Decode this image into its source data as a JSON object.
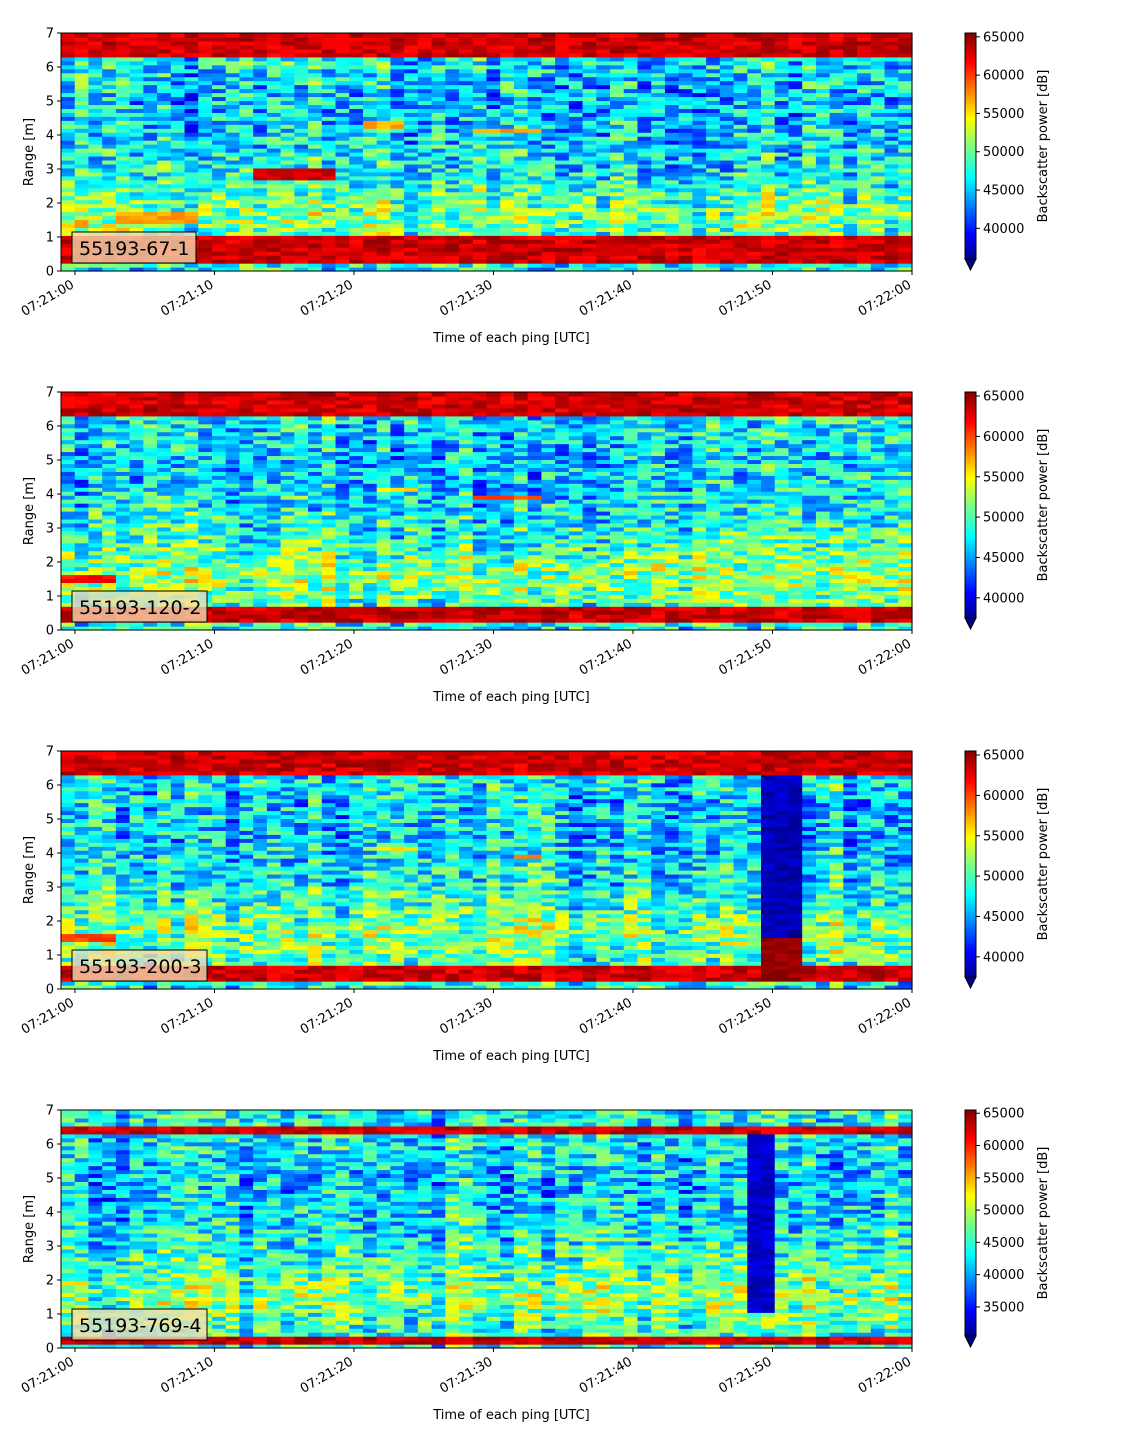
{
  "chart_data": [
    {
      "type": "heatmap",
      "annotation": "55193-67-1",
      "xlabel": "Time of each ping [UTC]",
      "ylabel": "Range [m]",
      "x_ticks": [
        "07:21:00",
        "07:21:10",
        "07:21:20",
        "07:21:30",
        "07:21:40",
        "07:21:50",
        "07:22:00"
      ],
      "x_range": [
        "07:20:59",
        "07:22:00"
      ],
      "y_ticks": [
        0,
        1,
        2,
        3,
        4,
        5,
        6,
        7
      ],
      "ylim": [
        0,
        7
      ],
      "colorbar": {
        "label": "Backscatter power [dB]",
        "ticks": [
          40000,
          45000,
          50000,
          55000,
          60000,
          65000
        ],
        "range": [
          36000,
          65500
        ],
        "extend": "min",
        "colormap": "jet"
      },
      "features": [
        {
          "kind": "band",
          "y_from": 0.2,
          "y_to": 1.1,
          "value": 65000
        },
        {
          "kind": "band",
          "y_from": 6.3,
          "y_to": 7.0,
          "value": 65000
        },
        {
          "kind": "patch",
          "t_from": "07:21:13",
          "t_to": "07:21:19",
          "y_from": 2.7,
          "y_to": 3.0,
          "value": 63000
        },
        {
          "kind": "patch",
          "t_from": "07:21:21",
          "t_to": "07:21:24",
          "y_from": 4.2,
          "y_to": 4.4,
          "value": 57000
        },
        {
          "kind": "patch",
          "t_from": "07:21:29",
          "t_to": "07:21:33",
          "y_from": 4.05,
          "y_to": 4.25,
          "value": 57000
        },
        {
          "kind": "patch",
          "t_from": "07:21:03",
          "t_to": "07:21:09",
          "y_from": 1.4,
          "y_to": 1.7,
          "value": 57000
        }
      ]
    },
    {
      "type": "heatmap",
      "annotation": "55193-120-2",
      "xlabel": "Time of each ping [UTC]",
      "ylabel": "Range [m]",
      "x_ticks": [
        "07:21:00",
        "07:21:10",
        "07:21:20",
        "07:21:30",
        "07:21:40",
        "07:21:50",
        "07:22:00"
      ],
      "x_range": [
        "07:20:59",
        "07:22:00"
      ],
      "y_ticks": [
        0,
        1,
        2,
        3,
        4,
        5,
        6,
        7
      ],
      "ylim": [
        0,
        7
      ],
      "colorbar": {
        "label": "Backscatter power [dB]",
        "ticks": [
          40000,
          45000,
          50000,
          55000,
          60000,
          65000
        ],
        "range": [
          37500,
          65500
        ],
        "extend": "min",
        "colormap": "jet"
      },
      "features": [
        {
          "kind": "band",
          "y_from": 0.2,
          "y_to": 0.7,
          "value": 65000
        },
        {
          "kind": "band",
          "y_from": 6.3,
          "y_to": 7.0,
          "value": 65000
        },
        {
          "kind": "patch",
          "t_from": "07:21:22",
          "t_to": "07:21:25",
          "y_from": 4.05,
          "y_to": 4.2,
          "value": 56000
        },
        {
          "kind": "patch",
          "t_from": "07:21:29",
          "t_to": "07:21:33",
          "y_from": 3.8,
          "y_to": 3.95,
          "value": 60000
        },
        {
          "kind": "patch",
          "t_from": "07:21:15",
          "t_to": "07:21:18",
          "y_from": 2.5,
          "y_to": 2.65,
          "value": 54000
        },
        {
          "kind": "patch",
          "t_from": "07:20:59",
          "t_to": "07:21:03",
          "y_from": 1.4,
          "y_to": 1.6,
          "value": 62000
        }
      ]
    },
    {
      "type": "heatmap",
      "annotation": "55193-200-3",
      "xlabel": "Time of each ping [UTC]",
      "ylabel": "Range [m]",
      "x_ticks": [
        "07:21:00",
        "07:21:10",
        "07:21:20",
        "07:21:30",
        "07:21:40",
        "07:21:50",
        "07:22:00"
      ],
      "x_range": [
        "07:20:59",
        "07:22:00"
      ],
      "y_ticks": [
        0,
        1,
        2,
        3,
        4,
        5,
        6,
        7
      ],
      "ylim": [
        0,
        7
      ],
      "colorbar": {
        "label": "Backscatter power [dB]",
        "ticks": [
          40000,
          45000,
          50000,
          55000,
          60000,
          65000
        ],
        "range": [
          37500,
          65500
        ],
        "extend": "min",
        "colormap": "jet"
      },
      "features": [
        {
          "kind": "band",
          "y_from": 0.2,
          "y_to": 0.65,
          "value": 65000
        },
        {
          "kind": "band",
          "y_from": 6.3,
          "y_to": 7.0,
          "value": 65000
        },
        {
          "kind": "patch",
          "t_from": "07:21:22",
          "t_to": "07:21:25",
          "y_from": 4.05,
          "y_to": 4.2,
          "value": 56000
        },
        {
          "kind": "patch",
          "t_from": "07:21:31",
          "t_to": "07:21:33",
          "y_from": 3.85,
          "y_to": 4.0,
          "value": 58000
        },
        {
          "kind": "patch",
          "t_from": "07:20:59",
          "t_to": "07:21:03",
          "y_from": 1.4,
          "y_to": 1.6,
          "value": 60000
        },
        {
          "kind": "column",
          "t_from": "07:21:49",
          "t_to": "07:21:52",
          "y_from": 1.5,
          "y_to": 6.3,
          "value": 39000
        },
        {
          "kind": "patch",
          "t_from": "07:21:49",
          "t_to": "07:21:52",
          "y_from": 0.2,
          "y_to": 1.5,
          "value": 65000
        }
      ]
    },
    {
      "type": "heatmap",
      "annotation": "55193-769-4",
      "xlabel": "Time of each ping [UTC]",
      "ylabel": "Range [m]",
      "x_ticks": [
        "07:21:00",
        "07:21:10",
        "07:21:20",
        "07:21:30",
        "07:21:40",
        "07:21:50",
        "07:22:00"
      ],
      "x_range": [
        "07:20:59",
        "07:22:00"
      ],
      "y_ticks": [
        0,
        1,
        2,
        3,
        4,
        5,
        6,
        7
      ],
      "ylim": [
        0,
        7
      ],
      "colorbar": {
        "label": "Backscatter power [dB]",
        "ticks": [
          35000,
          40000,
          45000,
          50000,
          55000,
          60000,
          65000
        ],
        "range": [
          30500,
          65500
        ],
        "extend": "min",
        "colormap": "jet"
      },
      "features": [
        {
          "kind": "band",
          "y_from": 0.15,
          "y_to": 0.35,
          "value": 65000
        },
        {
          "kind": "band",
          "y_from": 6.35,
          "y_to": 6.55,
          "value": 65000
        },
        {
          "kind": "column",
          "t_from": "07:21:48",
          "t_to": "07:21:50",
          "y_from": 1.0,
          "y_to": 6.3,
          "value": 33000
        }
      ]
    }
  ]
}
